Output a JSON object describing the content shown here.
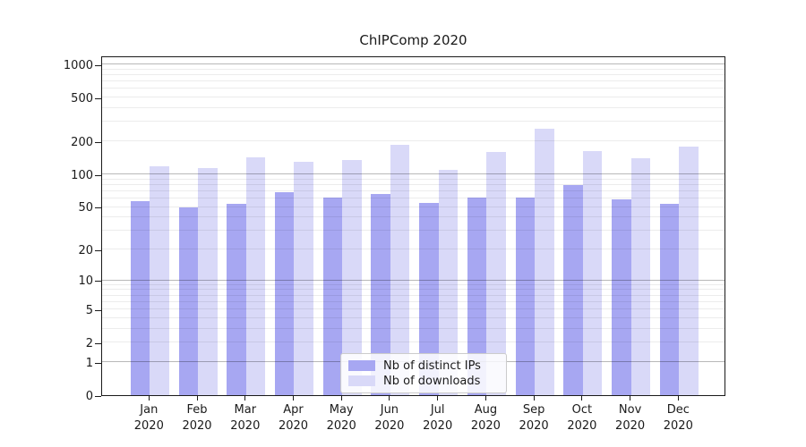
{
  "chart_data": {
    "type": "bar",
    "title": "ChIPComp 2020",
    "categories": [
      "Jan",
      "Feb",
      "Mar",
      "Apr",
      "May",
      "Jun",
      "Jul",
      "Aug",
      "Sep",
      "Oct",
      "Nov",
      "Dec"
    ],
    "category_sublabel": "2020",
    "series": [
      {
        "name": "Nb of distinct IPs",
        "color": "#a7a7f2",
        "values": [
          57,
          50,
          53,
          68,
          61,
          66,
          54,
          61,
          61,
          79,
          59,
          53
        ]
      },
      {
        "name": "Nb of downloads",
        "color": "#d9d9f8",
        "values": [
          119,
          113,
          143,
          129,
          134,
          187,
          110,
          159,
          258,
          163,
          139,
          180
        ]
      }
    ],
    "xlabel": "",
    "ylabel": "",
    "y_ticks": [
      0,
      1,
      2,
      5,
      10,
      20,
      50,
      100,
      200,
      500,
      1000
    ],
    "y_scale": "log10(1+v)",
    "ylim": [
      0,
      1200
    ],
    "grid": {
      "orientation": "horizontal",
      "minor": true,
      "major": true
    },
    "legend_position": "lower center"
  }
}
